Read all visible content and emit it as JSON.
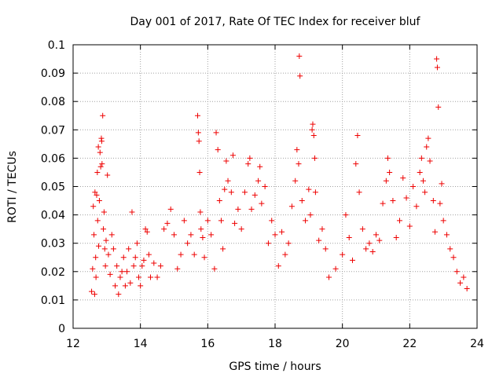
{
  "chart_data": {
    "type": "scatter",
    "title": "Day 001 of 2017, Rate Of TEC Index for receiver bluf",
    "xlabel": "GPS time / hours",
    "ylabel": "ROTI / TECUs",
    "xlim": [
      12,
      24
    ],
    "ylim": [
      0,
      0.1
    ],
    "xticks": [
      12,
      14,
      16,
      18,
      20,
      22,
      24
    ],
    "yticks": [
      0,
      0.01,
      0.02,
      0.03,
      0.04,
      0.05,
      0.06,
      0.07,
      0.08,
      0.09,
      0.1
    ],
    "xtick_labels": [
      "12",
      "14",
      "16",
      "18",
      "20",
      "22",
      "24"
    ],
    "ytick_labels": [
      "0",
      "0.01",
      "0.02",
      "0.03",
      "0.04",
      "0.05",
      "0.06",
      "0.07",
      "0.08",
      "0.09",
      "0.1"
    ],
    "grid": true,
    "marker": "plus",
    "marker_color": "#ee0000",
    "series": [
      {
        "name": "ROTI",
        "points": [
          [
            12.55,
            0.013
          ],
          [
            12.58,
            0.021
          ],
          [
            12.6,
            0.043
          ],
          [
            12.62,
            0.033
          ],
          [
            12.64,
            0.012
          ],
          [
            12.65,
            0.048
          ],
          [
            12.67,
            0.025
          ],
          [
            12.68,
            0.018
          ],
          [
            12.7,
            0.047
          ],
          [
            12.72,
            0.055
          ],
          [
            12.73,
            0.038
          ],
          [
            12.75,
            0.064
          ],
          [
            12.76,
            0.029
          ],
          [
            12.78,
            0.045
          ],
          [
            12.8,
            0.062
          ],
          [
            12.82,
            0.057
          ],
          [
            12.84,
            0.067
          ],
          [
            12.85,
            0.066
          ],
          [
            12.86,
            0.058
          ],
          [
            12.88,
            0.075
          ],
          [
            12.9,
            0.035
          ],
          [
            12.92,
            0.041
          ],
          [
            12.94,
            0.028
          ],
          [
            12.96,
            0.022
          ],
          [
            12.98,
            0.031
          ],
          [
            13.02,
            0.054
          ],
          [
            13.05,
            0.026
          ],
          [
            13.1,
            0.019
          ],
          [
            13.15,
            0.033
          ],
          [
            13.2,
            0.028
          ],
          [
            13.25,
            0.015
          ],
          [
            13.3,
            0.022
          ],
          [
            13.35,
            0.012
          ],
          [
            13.4,
            0.018
          ],
          [
            13.45,
            0.02
          ],
          [
            13.5,
            0.025
          ],
          [
            13.55,
            0.015
          ],
          [
            13.6,
            0.02
          ],
          [
            13.65,
            0.028
          ],
          [
            13.7,
            0.016
          ],
          [
            13.75,
            0.041
          ],
          [
            13.8,
            0.022
          ],
          [
            13.85,
            0.025
          ],
          [
            13.9,
            0.03
          ],
          [
            13.95,
            0.018
          ],
          [
            14.0,
            0.015
          ],
          [
            14.05,
            0.022
          ],
          [
            14.1,
            0.024
          ],
          [
            14.15,
            0.035
          ],
          [
            14.2,
            0.034
          ],
          [
            14.25,
            0.026
          ],
          [
            14.3,
            0.018
          ],
          [
            14.4,
            0.023
          ],
          [
            14.5,
            0.018
          ],
          [
            14.6,
            0.022
          ],
          [
            14.7,
            0.035
          ],
          [
            14.8,
            0.037
          ],
          [
            14.9,
            0.042
          ],
          [
            15.0,
            0.033
          ],
          [
            15.1,
            0.021
          ],
          [
            15.2,
            0.026
          ],
          [
            15.3,
            0.038
          ],
          [
            15.4,
            0.03
          ],
          [
            15.5,
            0.033
          ],
          [
            15.6,
            0.026
          ],
          [
            15.7,
            0.075
          ],
          [
            15.72,
            0.069
          ],
          [
            15.74,
            0.066
          ],
          [
            15.76,
            0.055
          ],
          [
            15.78,
            0.041
          ],
          [
            15.8,
            0.035
          ],
          [
            15.85,
            0.032
          ],
          [
            15.9,
            0.025
          ],
          [
            16.0,
            0.038
          ],
          [
            16.1,
            0.033
          ],
          [
            16.2,
            0.021
          ],
          [
            16.25,
            0.069
          ],
          [
            16.3,
            0.063
          ],
          [
            16.35,
            0.045
          ],
          [
            16.4,
            0.038
          ],
          [
            16.45,
            0.028
          ],
          [
            16.5,
            0.049
          ],
          [
            16.55,
            0.059
          ],
          [
            16.6,
            0.052
          ],
          [
            16.7,
            0.048
          ],
          [
            16.75,
            0.061
          ],
          [
            16.8,
            0.037
          ],
          [
            16.9,
            0.042
          ],
          [
            17.0,
            0.035
          ],
          [
            17.1,
            0.048
          ],
          [
            17.2,
            0.058
          ],
          [
            17.25,
            0.06
          ],
          [
            17.3,
            0.042
          ],
          [
            17.4,
            0.047
          ],
          [
            17.5,
            0.052
          ],
          [
            17.55,
            0.057
          ],
          [
            17.6,
            0.044
          ],
          [
            17.7,
            0.05
          ],
          [
            17.8,
            0.03
          ],
          [
            17.9,
            0.038
          ],
          [
            18.0,
            0.033
          ],
          [
            18.1,
            0.022
          ],
          [
            18.2,
            0.034
          ],
          [
            18.3,
            0.026
          ],
          [
            18.4,
            0.03
          ],
          [
            18.5,
            0.043
          ],
          [
            18.6,
            0.052
          ],
          [
            18.65,
            0.063
          ],
          [
            18.7,
            0.058
          ],
          [
            18.72,
            0.096
          ],
          [
            18.74,
            0.089
          ],
          [
            18.8,
            0.045
          ],
          [
            18.9,
            0.038
          ],
          [
            19.0,
            0.049
          ],
          [
            19.05,
            0.04
          ],
          [
            19.1,
            0.07
          ],
          [
            19.12,
            0.072
          ],
          [
            19.15,
            0.068
          ],
          [
            19.18,
            0.06
          ],
          [
            19.2,
            0.048
          ],
          [
            19.3,
            0.031
          ],
          [
            19.4,
            0.035
          ],
          [
            19.5,
            0.028
          ],
          [
            19.6,
            0.018
          ],
          [
            19.8,
            0.021
          ],
          [
            20.0,
            0.026
          ],
          [
            20.1,
            0.04
          ],
          [
            20.2,
            0.032
          ],
          [
            20.3,
            0.024
          ],
          [
            20.4,
            0.058
          ],
          [
            20.45,
            0.068
          ],
          [
            20.5,
            0.048
          ],
          [
            20.6,
            0.035
          ],
          [
            20.7,
            0.028
          ],
          [
            20.8,
            0.03
          ],
          [
            20.9,
            0.027
          ],
          [
            21.0,
            0.033
          ],
          [
            21.1,
            0.031
          ],
          [
            21.2,
            0.044
          ],
          [
            21.3,
            0.052
          ],
          [
            21.35,
            0.06
          ],
          [
            21.4,
            0.055
          ],
          [
            21.5,
            0.045
          ],
          [
            21.6,
            0.032
          ],
          [
            21.7,
            0.038
          ],
          [
            21.8,
            0.053
          ],
          [
            21.9,
            0.046
          ],
          [
            22.0,
            0.036
          ],
          [
            22.1,
            0.05
          ],
          [
            22.2,
            0.043
          ],
          [
            22.3,
            0.055
          ],
          [
            22.35,
            0.06
          ],
          [
            22.4,
            0.052
          ],
          [
            22.45,
            0.048
          ],
          [
            22.5,
            0.064
          ],
          [
            22.55,
            0.067
          ],
          [
            22.6,
            0.059
          ],
          [
            22.7,
            0.045
          ],
          [
            22.75,
            0.034
          ],
          [
            22.8,
            0.095
          ],
          [
            22.82,
            0.092
          ],
          [
            22.85,
            0.078
          ],
          [
            22.9,
            0.044
          ],
          [
            22.95,
            0.051
          ],
          [
            23.0,
            0.038
          ],
          [
            23.1,
            0.033
          ],
          [
            23.2,
            0.028
          ],
          [
            23.3,
            0.025
          ],
          [
            23.4,
            0.02
          ],
          [
            23.5,
            0.016
          ],
          [
            23.6,
            0.018
          ],
          [
            23.7,
            0.014
          ]
        ]
      }
    ]
  }
}
